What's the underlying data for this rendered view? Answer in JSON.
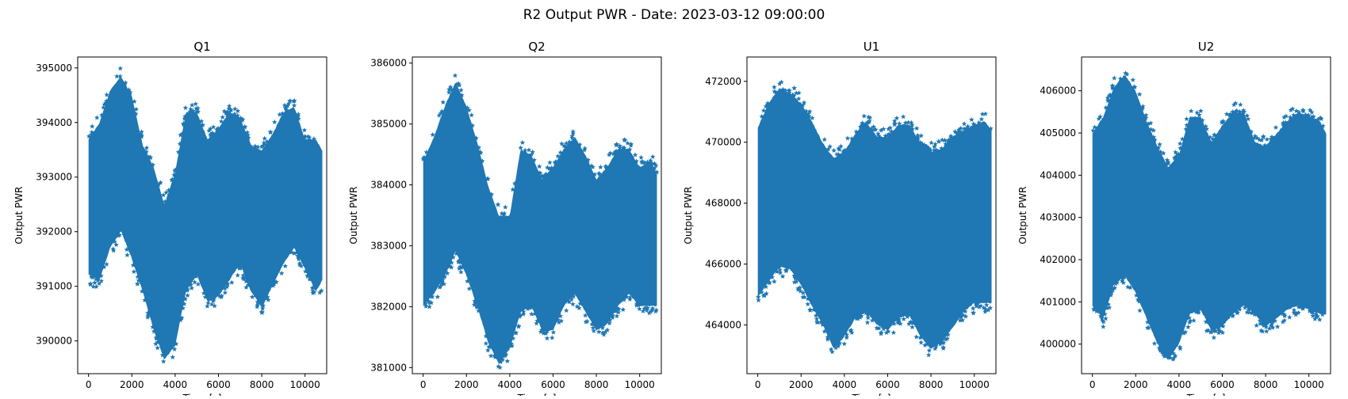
{
  "figure": {
    "title": "R2 Output PWR - Date: 2023-03-12 09:00:00"
  },
  "chart_data": [
    {
      "type": "scatter",
      "title": "Q1",
      "xlabel": "Time [s]",
      "ylabel": "Output PWR",
      "xlim": [
        -500,
        11000
      ],
      "ylim": [
        389400,
        395200
      ],
      "xticks": [
        0,
        2000,
        4000,
        6000,
        8000,
        10000
      ],
      "yticks": [
        390000,
        391000,
        392000,
        393000,
        394000,
        395000
      ],
      "marker": "*",
      "color": "#1f77b4",
      "x_range": [
        0,
        10800
      ],
      "envelope": {
        "x": [
          0,
          500,
          1000,
          1500,
          2000,
          2500,
          3000,
          3500,
          4000,
          4500,
          5000,
          5500,
          6000,
          6500,
          7000,
          7500,
          8000,
          8500,
          9000,
          9500,
          10000,
          10500,
          10800
        ],
        "upper": [
          393700,
          394000,
          394600,
          394850,
          394500,
          393600,
          393200,
          392500,
          393100,
          394200,
          394200,
          393700,
          393900,
          394200,
          394100,
          393600,
          393500,
          393800,
          394200,
          394300,
          393700,
          393700,
          393500
        ],
        "core_top": [
          393200,
          393500,
          394000,
          394300,
          394000,
          393200,
          392700,
          392100,
          392400,
          393600,
          393700,
          393200,
          393400,
          393700,
          393600,
          393100,
          393000,
          393300,
          393700,
          393800,
          393300,
          393100,
          393000
        ],
        "core_bottom": [
          391500,
          391600,
          392000,
          392100,
          391900,
          391300,
          390600,
          390100,
          390300,
          391300,
          391600,
          391100,
          391200,
          391500,
          391700,
          391300,
          391100,
          391400,
          391800,
          392100,
          391700,
          391400,
          391400
        ],
        "lower": [
          391200,
          391100,
          391700,
          392000,
          391500,
          390900,
          390200,
          389650,
          389900,
          390900,
          391200,
          390700,
          390800,
          391100,
          391400,
          390900,
          390600,
          391000,
          391400,
          391700,
          391300,
          390900,
          391100
        ]
      }
    },
    {
      "type": "scatter",
      "title": "Q2",
      "xlabel": "Time [s]",
      "ylabel": "Output PWR",
      "xlim": [
        -500,
        11000
      ],
      "ylim": [
        380900,
        386100
      ],
      "xticks": [
        0,
        2000,
        4000,
        6000,
        8000,
        10000
      ],
      "yticks": [
        381000,
        382000,
        383000,
        384000,
        385000,
        386000
      ],
      "marker": "*",
      "color": "#1f77b4",
      "x_range": [
        0,
        10800
      ],
      "envelope": {
        "x": [
          0,
          500,
          1000,
          1500,
          2000,
          2500,
          3000,
          3500,
          4000,
          4500,
          5000,
          5500,
          6000,
          6500,
          7000,
          7500,
          8000,
          8500,
          9000,
          9500,
          10000,
          10500,
          10800
        ],
        "upper": [
          384400,
          384800,
          385300,
          385700,
          385300,
          384700,
          384000,
          383500,
          383500,
          384600,
          384500,
          384100,
          384300,
          384600,
          384800,
          384500,
          384100,
          384300,
          384600,
          384600,
          384300,
          384400,
          384200
        ],
        "core_top": [
          383900,
          384300,
          384900,
          385300,
          384900,
          384200,
          383500,
          383000,
          383100,
          384100,
          384100,
          383700,
          383900,
          384200,
          384400,
          384000,
          383600,
          383900,
          384200,
          384200,
          383900,
          383900,
          383800
        ],
        "core_bottom": [
          382300,
          382400,
          382800,
          383000,
          382800,
          382300,
          381700,
          381300,
          381600,
          382200,
          382300,
          381900,
          382000,
          382300,
          382600,
          382300,
          381900,
          382000,
          382300,
          382500,
          382300,
          382300,
          382300
        ],
        "lower": [
          382000,
          382200,
          382500,
          382900,
          382500,
          382000,
          381400,
          381050,
          381300,
          381900,
          382000,
          381600,
          381600,
          382000,
          382200,
          381900,
          381600,
          381700,
          382000,
          382200,
          382000,
          382000,
          382000
        ]
      }
    },
    {
      "type": "scatter",
      "title": "U1",
      "xlabel": "Time [s]",
      "ylabel": "Output PWR",
      "xlim": [
        -500,
        11000
      ],
      "ylim": [
        462400,
        472800
      ],
      "xticks": [
        0,
        2000,
        4000,
        6000,
        8000,
        10000
      ],
      "yticks": [
        464000,
        466000,
        468000,
        470000,
        472000
      ],
      "marker": "*",
      "color": "#1f77b4",
      "x_range": [
        0,
        10800
      ],
      "envelope": {
        "x": [
          0,
          500,
          1000,
          1500,
          2000,
          2500,
          3000,
          3500,
          4000,
          4500,
          5000,
          5500,
          6000,
          6500,
          7000,
          7500,
          8000,
          8500,
          9000,
          9500,
          10000,
          10500,
          10800
        ],
        "upper": [
          470500,
          471300,
          471800,
          471600,
          471300,
          470700,
          470000,
          469500,
          469700,
          470300,
          470700,
          470200,
          470200,
          470600,
          470600,
          470000,
          469700,
          469800,
          470200,
          470400,
          470600,
          470700,
          470400
        ],
        "core_top": [
          469700,
          470300,
          470800,
          470700,
          470300,
          469700,
          469100,
          468700,
          468900,
          469600,
          469800,
          469400,
          469400,
          469800,
          469800,
          469300,
          469000,
          469100,
          469500,
          469700,
          469900,
          469900,
          469700
        ],
        "core_bottom": [
          465200,
          465900,
          466300,
          466100,
          465700,
          465000,
          464400,
          464000,
          464200,
          464800,
          465000,
          464600,
          464400,
          464800,
          464800,
          464200,
          463900,
          464100,
          464600,
          465000,
          465200,
          465200,
          465100
        ],
        "lower": [
          464900,
          465400,
          465900,
          465800,
          465300,
          464600,
          464000,
          463200,
          463600,
          464200,
          464400,
          464000,
          463800,
          464200,
          464300,
          463600,
          463200,
          463400,
          463900,
          464400,
          464700,
          464700,
          464700
        ]
      }
    },
    {
      "type": "scatter",
      "title": "U2",
      "xlabel": "Time [s]",
      "ylabel": "Output PWR",
      "xlim": [
        -500,
        11000
      ],
      "ylim": [
        399300,
        406800
      ],
      "xticks": [
        0,
        2000,
        4000,
        6000,
        8000,
        10000
      ],
      "yticks": [
        400000,
        401000,
        402000,
        403000,
        404000,
        405000,
        406000
      ],
      "marker": "*",
      "color": "#1f77b4",
      "x_range": [
        0,
        10800
      ],
      "envelope": {
        "x": [
          0,
          500,
          1000,
          1500,
          2000,
          2500,
          3000,
          3500,
          4000,
          4500,
          5000,
          5500,
          6000,
          6500,
          7000,
          7500,
          8000,
          8500,
          9000,
          9500,
          10000,
          10500,
          10800
        ],
        "upper": [
          405000,
          405400,
          406100,
          406400,
          406000,
          405300,
          404700,
          404200,
          404500,
          405400,
          405400,
          404800,
          405200,
          405500,
          405500,
          404800,
          404700,
          405000,
          405300,
          405500,
          405400,
          405300,
          405000
        ],
        "core_top": [
          404500,
          404900,
          405600,
          405900,
          405500,
          404700,
          404200,
          403800,
          404000,
          404900,
          404900,
          404400,
          404700,
          405000,
          405000,
          404400,
          404200,
          404500,
          404800,
          405000,
          404900,
          404800,
          404500
        ],
        "core_bottom": [
          401300,
          401500,
          401900,
          402000,
          401700,
          401100,
          400500,
          400000,
          400400,
          401100,
          401200,
          400800,
          400800,
          401000,
          401300,
          401000,
          400700,
          401000,
          401200,
          401300,
          401100,
          401000,
          401000
        ],
        "lower": [
          400900,
          400600,
          401400,
          401600,
          401200,
          400600,
          400000,
          399600,
          400000,
          400700,
          400800,
          400300,
          400400,
          400700,
          400900,
          400700,
          400400,
          400600,
          400800,
          400900,
          400800,
          400700,
          400700
        ]
      }
    }
  ]
}
